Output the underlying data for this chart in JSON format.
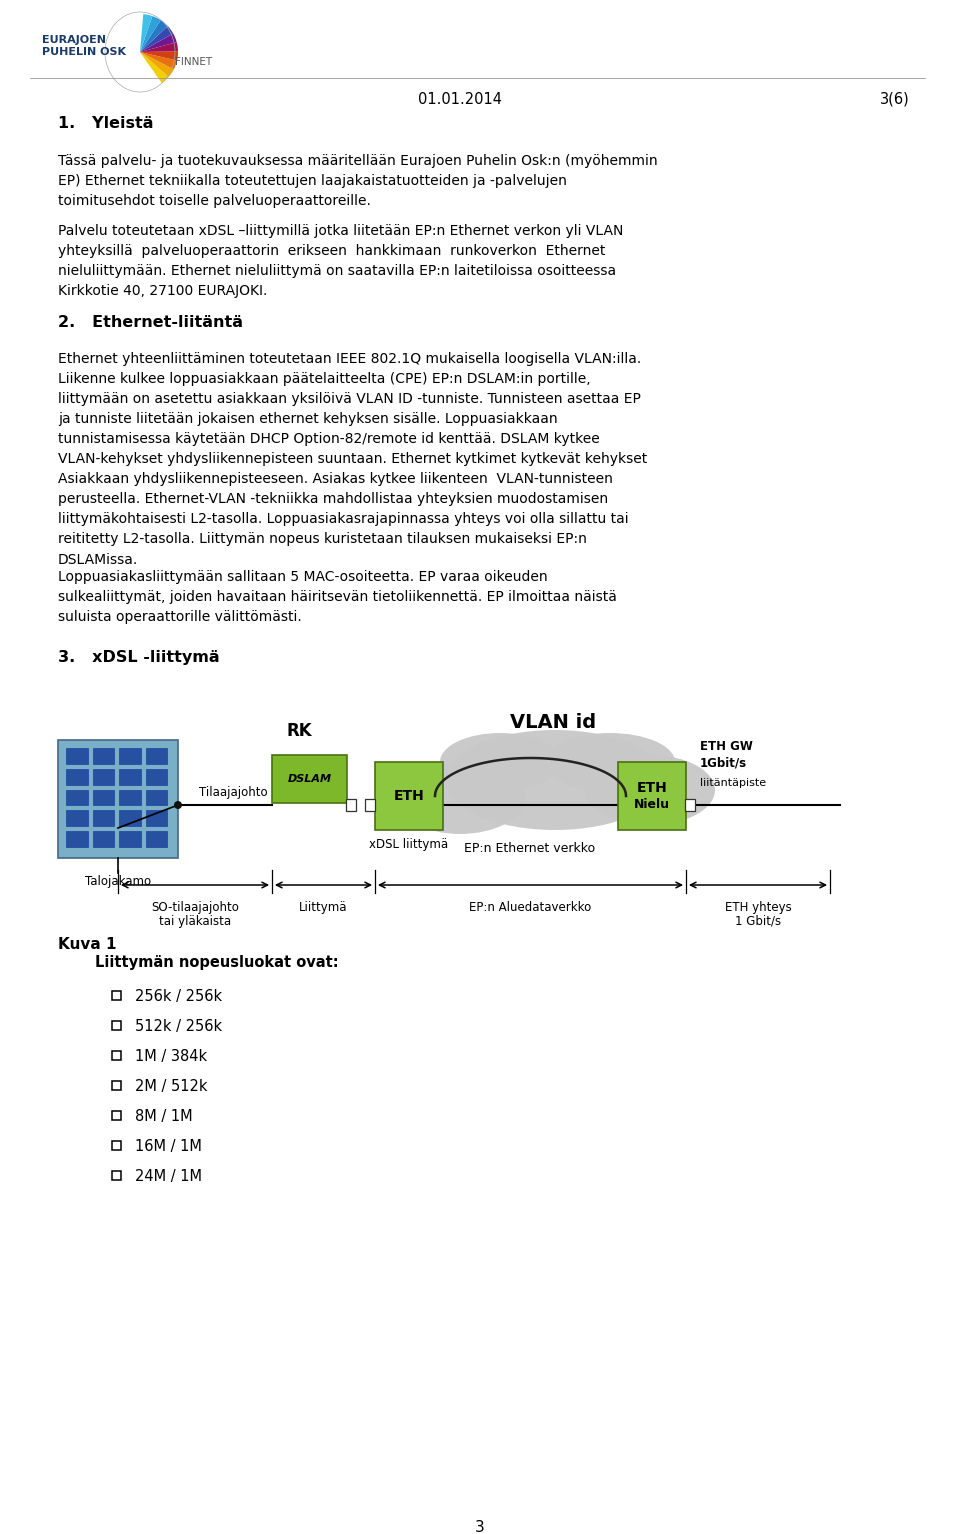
{
  "bg_color": "#ffffff",
  "page_width": 9.6,
  "page_height": 15.34,
  "header_date": "01.01.2014",
  "header_page": "3(6)",
  "section1_title": "1.   Yleistä",
  "section1_para1": "Tässä palvelu- ja tuotekuvauksessa määritellään Eurajoen Puhelin Osk:n (myöhemmin\nEP) Ethernet tekniikalla toteutettujen laajakaistatuotteiden ja -palvelujen\ntoimitusehdot toiselle palveluoperaattoreille.",
  "section1_para2": "Palvelu toteutetaan xDSL –liittymillä jotka liitetään EP:n Ethernet verkon yli VLAN\nyhteyksillä  palveluoperaattorin  erikseen  hankkimaan  runkoverkon  Ethernet\nnieluliittymään. Ethernet nieluliittymä on saatavilla EP:n laitetiloissa osoitteessa\nKirkkotie 40, 27100 EURAJOKI.",
  "section2_title": "2.   Ethernet-liitäntä",
  "section2_para1": "Ethernet yhteenliittäminen toteutetaan IEEE 802.1Q mukaisella loogisella VLAN:illa.\nLiikenne kulkee loppuasiakkaan päätelaitteelta (CPE) EP:n DSLAM:in portille,\nliittymään on asetettu asiakkaan yksilöivä VLAN ID -tunniste. Tunnisteen asettaa EP\nja tunniste liitetään jokaisen ethernet kehyksen sisälle. Loppuasiakkaan\ntunnistamisessa käytetään DHCP Option-82/remote id kenttää. DSLAM kytkee\nVLAN-kehykset yhdysliikennepisteen suuntaan. Ethernet kytkimet kytkevät kehykset\nAsiakkaan yhdysliikennepisteeseen. Asiakas kytkee liikenteen  VLAN-tunnisteen\nperusteella. Ethernet-VLAN -tekniikka mahdollistaa yhteyksien muodostamisen\nliittymäkohtaisesti L2-tasolla. Loppuasiakasrajapinnassa yhteys voi olla sillattu tai\nreititetty L2-tasolla. Liittymän nopeus kuristetaan tilauksen mukaiseksi EP:n\nDSLAMissa.",
  "section2_para2": "Loppuasiakasliittymään sallitaan 5 MAC-osoiteetta. EP varaa oikeuden\nsulkealiittymät, joiden havaitaan häiritsevän tietoliikennettä. EP ilmoittaa näistä\nsuluista operaattorille välittömästi.",
  "section3_title": "3.   xDSL -liittymä",
  "bullet_title": "Liittymän nopeusluokat ovat:",
  "bullets": [
    "256k / 256k",
    "512k / 256k",
    "1M / 384k",
    "2M / 512k",
    "8M / 1M",
    "16M / 1M",
    "24M / 1M"
  ],
  "footer_page_num": "3",
  "logo_text1": "EURAJOEN\nPUHELIN OSK",
  "finnet_text": "FINNET"
}
